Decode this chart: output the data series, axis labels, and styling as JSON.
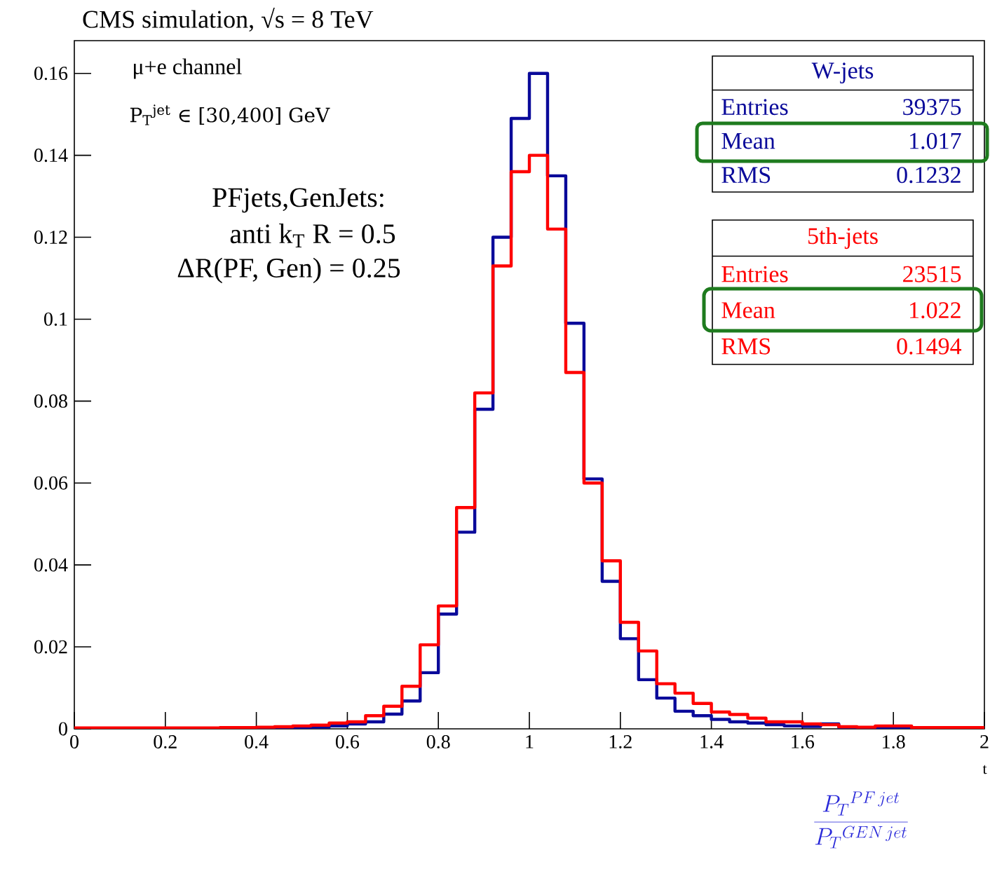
{
  "chart_data": {
    "type": "histogram",
    "title": "CMS simulation, √s = 8 TeV",
    "bins": [
      0,
      0.04,
      0.08,
      0.12,
      0.16,
      0.2,
      0.24,
      0.28,
      0.32,
      0.36,
      0.4,
      0.44,
      0.48,
      0.52,
      0.56,
      0.6,
      0.64,
      0.68,
      0.72,
      0.76,
      0.8,
      0.84,
      0.88,
      0.92,
      0.96,
      1,
      1.04,
      1.08,
      1.12,
      1.16,
      1.2,
      1.24,
      1.28,
      1.32,
      1.36,
      1.4,
      1.44,
      1.48,
      1.52,
      1.56,
      1.6,
      1.64,
      1.68,
      1.72,
      1.76,
      1.8,
      1.84,
      1.88,
      1.92,
      1.96,
      2
    ],
    "series": [
      {
        "name": "W-jets",
        "color": "#0a0a9a",
        "values": [
          0.0001,
          0.0001,
          0.0001,
          0.0001,
          0.0001,
          0.0001,
          0.0001,
          0.0001,
          0.0002,
          0.0002,
          0.0002,
          0.0002,
          0.0003,
          0.0004,
          0.0007,
          0.0012,
          0.0017,
          0.0036,
          0.0068,
          0.0137,
          0.028,
          0.048,
          0.078,
          0.12,
          0.149,
          0.16,
          0.135,
          0.099,
          0.061,
          0.036,
          0.022,
          0.012,
          0.0075,
          0.0043,
          0.0032,
          0.0023,
          0.0017,
          0.0014,
          0.001,
          0.0007,
          0.0006,
          0.0012,
          0.0004,
          0.0003,
          0.0002,
          0.0002,
          0.0001,
          0.0001,
          0.0001,
          0.0001
        ]
      },
      {
        "name": "5th-jets",
        "color": "#ff0000",
        "values": [
          0.0002,
          0.0002,
          0.0002,
          0.0002,
          0.0002,
          0.0002,
          0.0002,
          0.0002,
          0.0003,
          0.0003,
          0.0004,
          0.0005,
          0.0007,
          0.0009,
          0.0014,
          0.0017,
          0.0032,
          0.0055,
          0.0104,
          0.0205,
          0.03,
          0.054,
          0.082,
          0.113,
          0.136,
          0.14,
          0.122,
          0.087,
          0.06,
          0.041,
          0.026,
          0.019,
          0.011,
          0.0087,
          0.0062,
          0.0041,
          0.0035,
          0.0026,
          0.0017,
          0.0017,
          0.0012,
          0.001,
          0.0005,
          0.0004,
          0.0007,
          0.0007,
          0.0003,
          0.0003,
          0.0003,
          0.0003
        ]
      }
    ],
    "xlim": [
      0,
      2
    ],
    "ylim": [
      0,
      0.168
    ],
    "xticks": [
      0,
      0.2,
      0.4,
      0.6,
      0.8,
      1,
      1.2,
      1.4,
      1.6,
      1.8,
      2
    ],
    "yticks": [
      0,
      0.02,
      0.04,
      0.06,
      0.08,
      0.1,
      0.12,
      0.14,
      0.16
    ],
    "legend": "top right",
    "grid": false,
    "annotations": [
      "μ+e channel",
      "P$_{T}$$^{jet}$ ∈ [30,400] GeV",
      "PFjets,GenJets:",
      "anti k$_{T}$ R = 0.5",
      "ΔR(PF, Gen) = 0.25",
      "Entries",
      "39375",
      "Mean",
      "1.017",
      "RMS",
      "0.1232",
      "Entries",
      "23515",
      "Mean",
      "1.022",
      "RMS",
      "0.1494",
      "\\frac{P_T{}^{PF\\,jet}}{P_T{}^{GEN\\,jet}}",
      "t"
    ]
  }
}
